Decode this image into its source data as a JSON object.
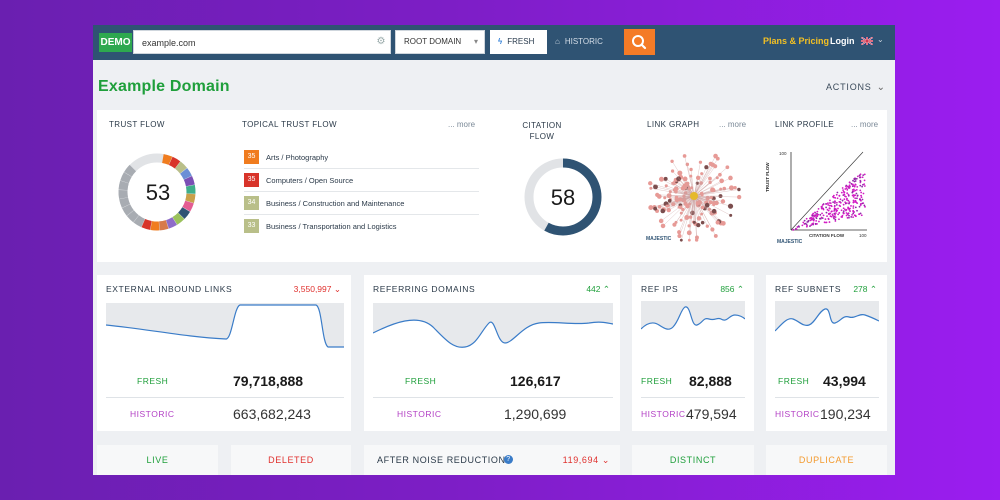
{
  "topbar": {
    "demo_badge": "DEMO",
    "search_value": "example.com",
    "root_select": "ROOT DOMAIN",
    "fresh_tab": "FRESH",
    "historic_tab": "HISTORIC",
    "plans_link": "Plans & Pricing",
    "login_link": "Login"
  },
  "page": {
    "title": "Example Domain",
    "actions_label": "ACTIONS"
  },
  "colors": {
    "fresh_green": "#1f9f3b",
    "historic_purple": "#b341c5",
    "accent_orange": "#f47b27",
    "change_red": "#e0312e",
    "nav_blue": "#2f5373"
  },
  "summary": {
    "trust_flow": {
      "label": "TRUST FLOW",
      "value": "53"
    },
    "topical_trust_flow": {
      "label": "TOPICAL TRUST FLOW",
      "more": "... more",
      "topics": [
        {
          "score": "35",
          "label": "Arts / Photography",
          "color": "#f07c1f"
        },
        {
          "score": "35",
          "label": "Computers / Open Source",
          "color": "#d8342a"
        },
        {
          "score": "34",
          "label": "Business / Construction and Maintenance",
          "color": "#b9bf89"
        },
        {
          "score": "33",
          "label": "Business / Transportation and Logistics",
          "color": "#b9bf89"
        }
      ]
    },
    "citation_flow": {
      "label_line1": "CITATION",
      "label_line2": "FLOW",
      "value": "58"
    },
    "link_graph": {
      "label": "LINK GRAPH",
      "more": "... more",
      "logo": "MAJESTIC"
    },
    "link_profile": {
      "label": "LINK PROFILE",
      "more": "... more",
      "y_axis": "TRUST FLOW",
      "x_axis": "CITATION FLOW",
      "y_max": "100",
      "x_max": "100",
      "logo": "MAJESTIC"
    }
  },
  "metrics": [
    {
      "title": "EXTERNAL INBOUND LINKS",
      "change": "3,550,997",
      "direction": "down",
      "fresh_label": "FRESH",
      "fresh_value": "79,718,888",
      "historic_label": "HISTORIC",
      "historic_value": "663,682,243"
    },
    {
      "title": "REFERRING DOMAINS",
      "change": "442",
      "direction": "up",
      "fresh_label": "FRESH",
      "fresh_value": "126,617",
      "historic_label": "HISTORIC",
      "historic_value": "1,290,699"
    },
    {
      "title": "REF IPS",
      "change": "856",
      "direction": "up",
      "fresh_label": "FRESH",
      "fresh_value": "82,888",
      "historic_label": "HISTORIC",
      "historic_value": "479,594"
    },
    {
      "title": "REF SUBNETS",
      "change": "278",
      "direction": "up",
      "fresh_label": "FRESH",
      "fresh_value": "43,994",
      "historic_label": "HISTORIC",
      "historic_value": "190,234"
    }
  ],
  "bottom": {
    "live": "LIVE",
    "deleted": "DELETED",
    "noise_label": "AFTER NOISE REDUCTION",
    "noise_change": "119,694",
    "distinct": "DISTINCT",
    "duplicate": "DUPLICATE"
  },
  "icons": {
    "search": "search-icon",
    "bolt": "bolt-icon",
    "historic": "bank-icon",
    "flag": "uk-flag-icon",
    "help": "help-icon"
  }
}
